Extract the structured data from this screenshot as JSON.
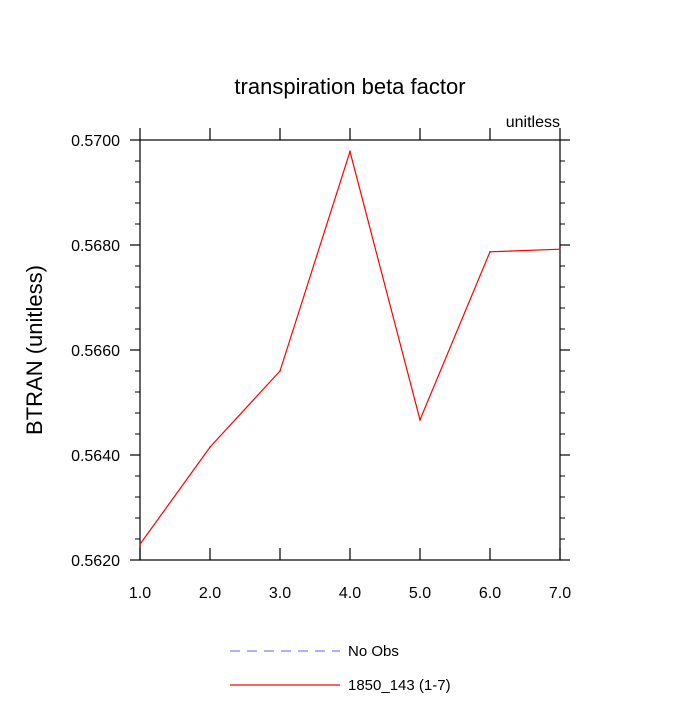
{
  "chart_data": {
    "type": "line",
    "title": "transpiration beta factor",
    "units_label": "unitless",
    "ylabel": "BTRAN  (unitless)",
    "xlabel": "",
    "x": [
      1,
      2,
      3,
      4,
      5,
      6,
      7
    ],
    "x_tick_labels": [
      "1.0",
      "2.0",
      "3.0",
      "4.0",
      "5.0",
      "6.0",
      "7.0"
    ],
    "xlim": [
      1,
      7
    ],
    "y_tick_values": [
      0.562,
      0.564,
      0.566,
      0.568,
      0.57
    ],
    "y_tick_labels": [
      "0.5620",
      "0.5640",
      "0.5660",
      "0.5680",
      "0.5700"
    ],
    "ylim": [
      0.562,
      0.57
    ],
    "grid": false,
    "legend_position": "bottom-center",
    "series": [
      {
        "name": "1850_143 (1-7)",
        "color": "#ff0000",
        "style": "solid",
        "values": [
          0.5623,
          0.56415,
          0.5656,
          0.56978,
          0.56467,
          0.56787,
          0.56792
        ]
      }
    ],
    "legend": [
      {
        "label": "No Obs",
        "color": "#8080ff",
        "style": "dashed"
      },
      {
        "label": "1850_143 (1-7)",
        "color": "#ff0000",
        "style": "solid"
      }
    ]
  }
}
